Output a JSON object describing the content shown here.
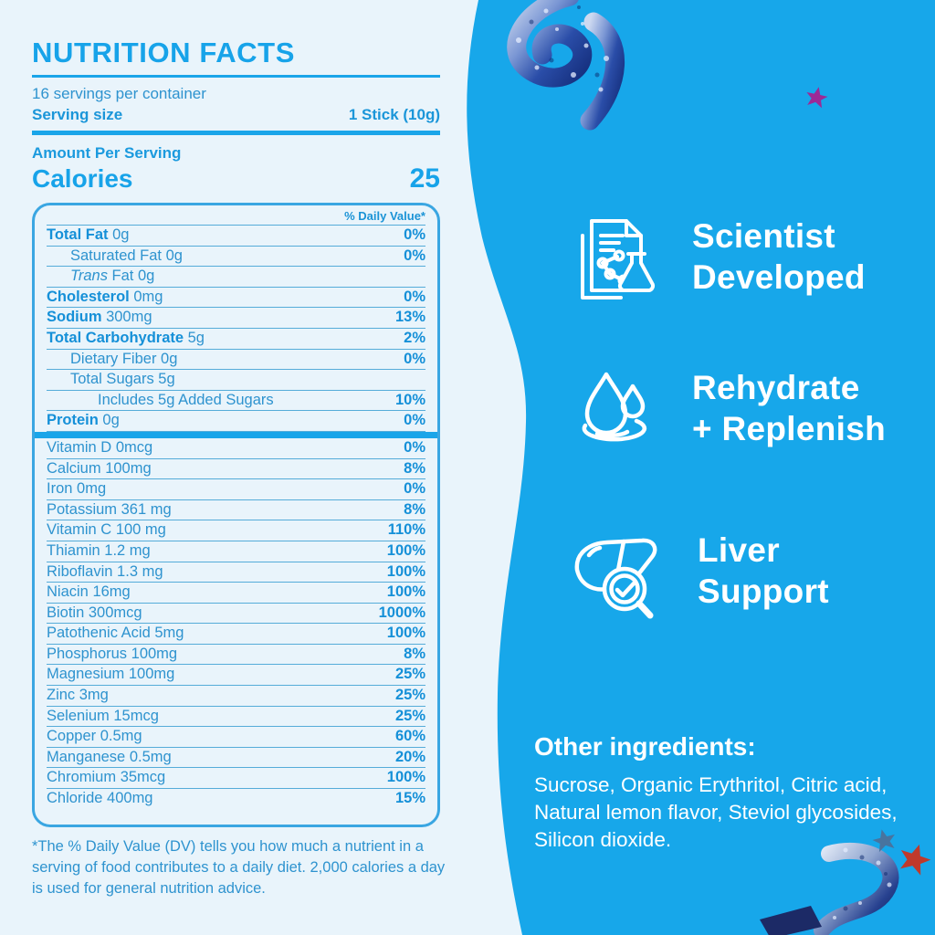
{
  "label": {
    "title": "NUTRITION FACTS",
    "servings_per_container": "16 servings per container",
    "serving_size_label": "Serving size",
    "serving_size_value": "1 Stick (10g)",
    "amount_per_serving": "Amount Per Serving",
    "calories_label": "Calories",
    "calories_value": "25",
    "daily_value_header": "% Daily Value*",
    "rows": [
      {
        "name": "Total Fat",
        "amount": "0g",
        "dv": "0%",
        "level": 0,
        "bold": true
      },
      {
        "name": "Saturated Fat",
        "amount": "0g",
        "dv": "0%",
        "level": 1,
        "bold": false
      },
      {
        "name": "Trans",
        "amount": "Fat 0g",
        "dv": "",
        "level": 1,
        "bold": false,
        "italic_name": true
      },
      {
        "name": "Cholesterol",
        "amount": "0mg",
        "dv": "0%",
        "level": 0,
        "bold": true
      },
      {
        "name": "Sodium",
        "amount": "300mg",
        "dv": "13%",
        "level": 0,
        "bold": true
      },
      {
        "name": "Total Carbohydrate",
        "amount": "5g",
        "dv": "2%",
        "level": 0,
        "bold": true
      },
      {
        "name": "Dietary Fiber",
        "amount": "0g",
        "dv": "0%",
        "level": 1,
        "bold": false
      },
      {
        "name": "Total Sugars",
        "amount": "5g",
        "dv": "",
        "level": 1,
        "bold": false
      },
      {
        "name": "Includes 5g Added Sugars",
        "amount": "",
        "dv": "10%",
        "level": 2,
        "bold": false
      },
      {
        "name": "Protein",
        "amount": "0g",
        "dv": "0%",
        "level": 0,
        "bold": true,
        "thick_bar_below": true
      },
      {
        "name": "Vitamin D",
        "amount": "0mcg",
        "dv": "0%",
        "level": 0,
        "bold": false
      },
      {
        "name": "Calcium",
        "amount": "100mg",
        "dv": "8%",
        "level": 0,
        "bold": false
      },
      {
        "name": "Iron",
        "amount": "0mg",
        "dv": "0%",
        "level": 0,
        "bold": false
      },
      {
        "name": "Potassium",
        "amount": "361 mg",
        "dv": "8%",
        "level": 0,
        "bold": false
      },
      {
        "name": "Vitamin C",
        "amount": "100 mg",
        "dv": "110%",
        "level": 0,
        "bold": false
      },
      {
        "name": "Thiamin",
        "amount": "1.2 mg",
        "dv": "100%",
        "level": 0,
        "bold": false
      },
      {
        "name": "Riboflavin",
        "amount": "1.3 mg",
        "dv": "100%",
        "level": 0,
        "bold": false
      },
      {
        "name": "Niacin",
        "amount": "16mg",
        "dv": "100%",
        "level": 0,
        "bold": false
      },
      {
        "name": "Biotin",
        "amount": "300mcg",
        "dv": "1000%",
        "level": 0,
        "bold": false
      },
      {
        "name": "Patothenic Acid",
        "amount": "5mg",
        "dv": "100%",
        "level": 0,
        "bold": false
      },
      {
        "name": "Phosphorus",
        "amount": "100mg",
        "dv": "8%",
        "level": 0,
        "bold": false
      },
      {
        "name": "Magnesium",
        "amount": "100mg",
        "dv": "25%",
        "level": 0,
        "bold": false
      },
      {
        "name": "Zinc",
        "amount": "3mg",
        "dv": "25%",
        "level": 0,
        "bold": false
      },
      {
        "name": "Selenium",
        "amount": "15mcg",
        "dv": "25%",
        "level": 0,
        "bold": false
      },
      {
        "name": "Copper",
        "amount": "0.5mg",
        "dv": "60%",
        "level": 0,
        "bold": false
      },
      {
        "name": "Manganese",
        "amount": "0.5mg",
        "dv": "20%",
        "level": 0,
        "bold": false
      },
      {
        "name": "Chromium",
        "amount": "35mcg",
        "dv": "100%",
        "level": 0,
        "bold": false
      },
      {
        "name": "Chloride",
        "amount": "400mg",
        "dv": "15%",
        "level": 0,
        "bold": false
      }
    ],
    "footnote": "*The % Daily Value (DV) tells you how much a nutrient in a serving of food contributes to a daily diet. 2,000 calories a day is used for general nutrition advice."
  },
  "panel": {
    "features": [
      {
        "icon": "scientist-document-flask-icon",
        "lines": [
          "Scientist",
          "Developed"
        ]
      },
      {
        "icon": "water-drop-ripple-icon",
        "lines": [
          "Rehydrate",
          "+ Replenish"
        ]
      },
      {
        "icon": "liver-magnifier-check-icon",
        "lines": [
          "Liver",
          "Support"
        ]
      }
    ],
    "other_ingredients_heading": "Other ingredients:",
    "other_ingredients_body": "Sucrose, Organic Erythritol, Citric acid, Natural lemon flavor, Steviol glycosides, Silicon dioxide."
  },
  "colors": {
    "background_left": "#e9f4fb",
    "panel_blue": "#17a7ea",
    "accent_blue": "#17a3e9",
    "text_blue_regular": "#2e93cf",
    "text_blue_bold": "#1590d8",
    "table_border": "#3aa6e2",
    "white": "#ffffff",
    "star_magenta": "#9c2a96",
    "star_steel_blue": "#48749f",
    "star_red": "#c0392b",
    "ribbon_navy": "#1c2a66",
    "ribbon_silver": "#cdd9f0"
  },
  "decorations": [
    {
      "name": "confetti-ribbon-top"
    },
    {
      "name": "star-magenta-top-right"
    },
    {
      "name": "confetti-ribbon-bottom"
    },
    {
      "name": "star-blue-bottom-right"
    },
    {
      "name": "star-red-bottom-right"
    }
  ]
}
